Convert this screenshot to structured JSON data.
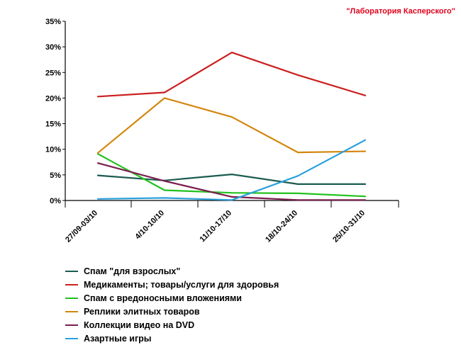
{
  "brand": "\"Лаборатория Касперского\"",
  "chart_data": {
    "type": "line",
    "categories": [
      "27/09-03/10",
      "4/10-10/10",
      "11/10-17/10",
      "18/10-24/10",
      "25/10-31/10"
    ],
    "ylim": [
      0,
      35
    ],
    "yticks": [
      {
        "value": 0,
        "label": "0%"
      },
      {
        "value": 5,
        "label": "5%"
      },
      {
        "value": 10,
        "label": "10%"
      },
      {
        "value": 15,
        "label": "15%"
      },
      {
        "value": 20,
        "label": "20%"
      },
      {
        "value": 25,
        "label": "25%"
      },
      {
        "value": 30,
        "label": "30%"
      },
      {
        "value": 35,
        "label": "35%"
      }
    ],
    "grid": false,
    "legend_position": "bottom",
    "series": [
      {
        "name": "Спам \"для взрослых\"",
        "color": "#1a5c50",
        "values": [
          4.9,
          3.9,
          5.1,
          3.2,
          3.2
        ]
      },
      {
        "name": "Медикаменты; товары/услуги для здоровья",
        "color": "#cc1f1f",
        "values": [
          20.3,
          21.1,
          28.9,
          24.5,
          20.5
        ]
      },
      {
        "name": "Спам с вредоносными вложениями",
        "color": "#22c11e",
        "values": [
          9.1,
          2.0,
          1.5,
          1.4,
          0.8
        ]
      },
      {
        "name": "Реплики элитных товаров",
        "color": "#d4860e",
        "values": [
          9.3,
          20.0,
          16.3,
          9.4,
          9.6
        ]
      },
      {
        "name": "Коллекции видео на DVD",
        "color": "#7a1e4e",
        "values": [
          7.3,
          3.8,
          0.7,
          0.1,
          0.1
        ]
      },
      {
        "name": "Азартные игры",
        "color": "#2aa0dc",
        "values": [
          0.3,
          0.5,
          0.1,
          4.8,
          11.8
        ]
      }
    ]
  }
}
